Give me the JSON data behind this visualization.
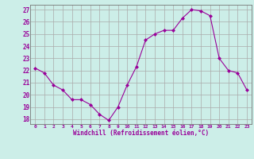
{
  "hours": [
    0,
    1,
    2,
    3,
    4,
    5,
    6,
    7,
    8,
    9,
    10,
    11,
    12,
    13,
    14,
    15,
    16,
    17,
    18,
    19,
    20,
    21,
    22,
    23
  ],
  "values": [
    22.2,
    21.8,
    20.8,
    20.4,
    19.6,
    19.6,
    19.2,
    18.4,
    17.9,
    19.0,
    20.8,
    22.3,
    24.5,
    25.0,
    25.3,
    25.3,
    26.3,
    27.0,
    26.9,
    26.5,
    23.0,
    22.0,
    21.8,
    20.4
  ],
  "line_color": "#990099",
  "marker": "D",
  "marker_size": 2,
  "bg_color": "#cceee8",
  "grid_color": "#aaaaaa",
  "xlabel": "Windchill (Refroidissement éolien,°C)",
  "xlabel_color": "#990099",
  "tick_color": "#990099",
  "ylabel_ticks": [
    18,
    19,
    20,
    21,
    22,
    23,
    24,
    25,
    26,
    27
  ],
  "ylim": [
    17.6,
    27.4
  ],
  "xlim": [
    -0.5,
    23.5
  ],
  "xtick_labels": [
    "0",
    "1",
    "2",
    "3",
    "4",
    "5",
    "6",
    "7",
    "8",
    "9",
    "10",
    "11",
    "12",
    "13",
    "14",
    "15",
    "16",
    "17",
    "18",
    "19",
    "20",
    "21",
    "22",
    "23"
  ]
}
